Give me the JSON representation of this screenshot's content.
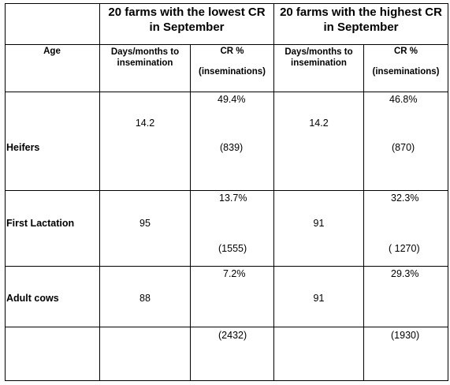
{
  "header": {
    "group_low": "20 farms with the lowest CR\nin September",
    "group_low_l1": "20 farms with the lowest CR",
    "group_low_l2": "in September",
    "group_high_l1": "20 farms with the highest CR",
    "group_high_l2": "in September",
    "age": "Age",
    "days_l1": "Days/months to",
    "days_l2": "insemination",
    "cr_l1": "CR %",
    "cr_l2": "(inseminations)"
  },
  "rows": [
    {
      "label": "Heifers",
      "low_days": "14.2",
      "low_cr": "49.4%",
      "low_ins": "(839)",
      "high_days": "14.2",
      "high_cr": "46.8%",
      "high_ins": "(870)"
    },
    {
      "label": "First Lactation",
      "low_days": "95",
      "low_cr": "13.7%",
      "low_ins": "(1555)",
      "high_days": "91",
      "high_cr": "32.3%",
      "high_ins": "( 1270)"
    },
    {
      "label": "Adult cows",
      "low_days": "88",
      "low_cr": "7.2%",
      "low_ins": "(2432)",
      "high_days": "91",
      "high_cr": "29.3%",
      "high_ins": "(1930)"
    }
  ]
}
